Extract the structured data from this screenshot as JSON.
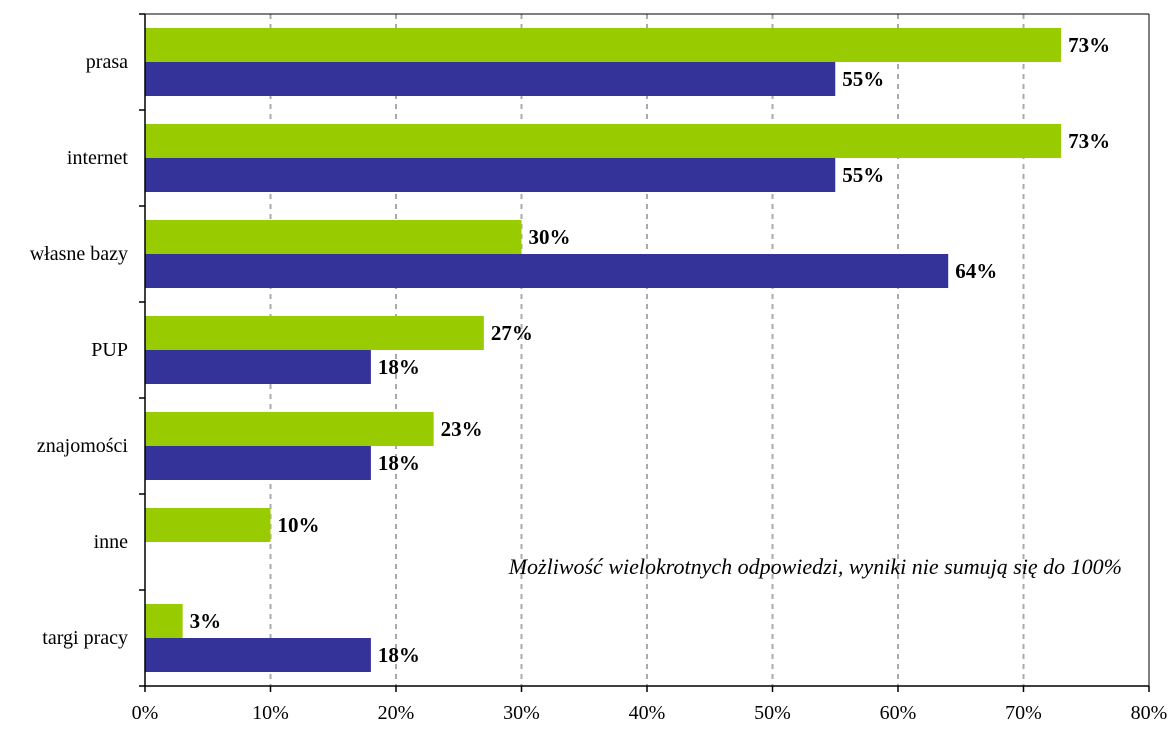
{
  "chart_data": {
    "type": "bar",
    "orientation": "horizontal",
    "categories": [
      "prasa",
      "internet",
      "własne bazy",
      "PUP",
      "znajomości",
      "inne",
      "targi pracy"
    ],
    "series": [
      {
        "values": [
          73,
          73,
          30,
          27,
          23,
          10,
          3
        ],
        "labels": [
          "73%",
          "73%",
          "30%",
          "27%",
          "23%",
          "10%",
          "3%"
        ],
        "color": "#99cc00"
      },
      {
        "values": [
          55,
          55,
          64,
          18,
          18,
          null,
          18
        ],
        "labels": [
          "55%",
          "55%",
          "64%",
          "18%",
          "18%",
          "",
          "18%"
        ],
        "color": "#333399"
      }
    ],
    "xlim": [
      0,
      80
    ],
    "xticks": [
      "0%",
      "10%",
      "20%",
      "30%",
      "40%",
      "50%",
      "60%",
      "70%",
      "80%"
    ],
    "grid": true,
    "annotation": "Możliwość wielokrotnych odpowiedzi, wyniki nie sumują się do 100%"
  }
}
